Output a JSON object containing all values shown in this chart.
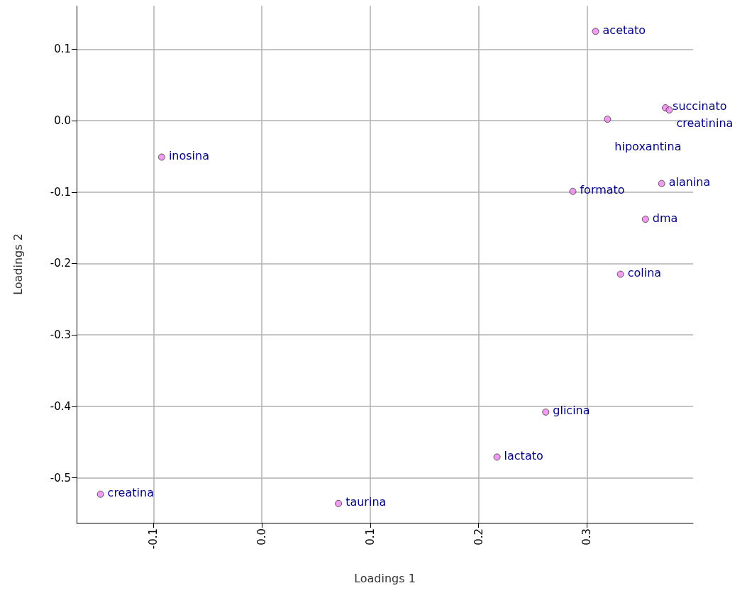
{
  "chart_data": {
    "type": "scatter",
    "xlabel": "Loadings 1",
    "ylabel": "Loadings 2",
    "x": [
      0.308,
      0.3725,
      0.376,
      0.319,
      -0.0925,
      0.287,
      0.369,
      0.354,
      0.331,
      0.262,
      0.217,
      -0.149,
      0.0707
    ],
    "series": [
      {
        "color": "#ee82ee",
        "values": [
          0.125,
          0.018,
          0.015,
          0.002,
          -0.051,
          -0.099,
          -0.088,
          -0.138,
          -0.215,
          -0.408,
          -0.471,
          -0.523,
          -0.536
        ]
      }
    ],
    "annotations": [
      {
        "text": "acetato",
        "x": 0.308,
        "y": 0.125
      },
      {
        "text": "succinato",
        "x": 0.3725,
        "y": 0.018
      },
      {
        "text": "creatinina",
        "x": 0.376,
        "y": 0.015
      },
      {
        "text": "hipoxantina",
        "x": 0.319,
        "y": 0.002
      },
      {
        "text": "inosina",
        "x": -0.0925,
        "y": -0.051
      },
      {
        "text": "formato",
        "x": 0.287,
        "y": -0.099
      },
      {
        "text": "alanina",
        "x": 0.369,
        "y": -0.088
      },
      {
        "text": "dma",
        "x": 0.354,
        "y": -0.138
      },
      {
        "text": "colina",
        "x": 0.331,
        "y": -0.215
      },
      {
        "text": "glicina",
        "x": 0.262,
        "y": -0.408
      },
      {
        "text": "lactato",
        "x": 0.217,
        "y": -0.471
      },
      {
        "text": "creatina",
        "x": -0.149,
        "y": -0.523
      },
      {
        "text": "taurina",
        "x": 0.0707,
        "y": -0.536
      }
    ],
    "xlim": [
      -0.171,
      0.398
    ],
    "ylim": [
      -0.563,
      0.161
    ],
    "xticks": [
      -0.1,
      {
        "value": 0,
        "label": "0.0"
      },
      0.1,
      0.2,
      0.3
    ],
    "yticks": [
      0.1,
      {
        "value": 0,
        "label": "0.0"
      },
      -0.1,
      -0.2,
      -0.3,
      -0.4,
      -0.5
    ],
    "grid": true,
    "marker": "circle"
  }
}
